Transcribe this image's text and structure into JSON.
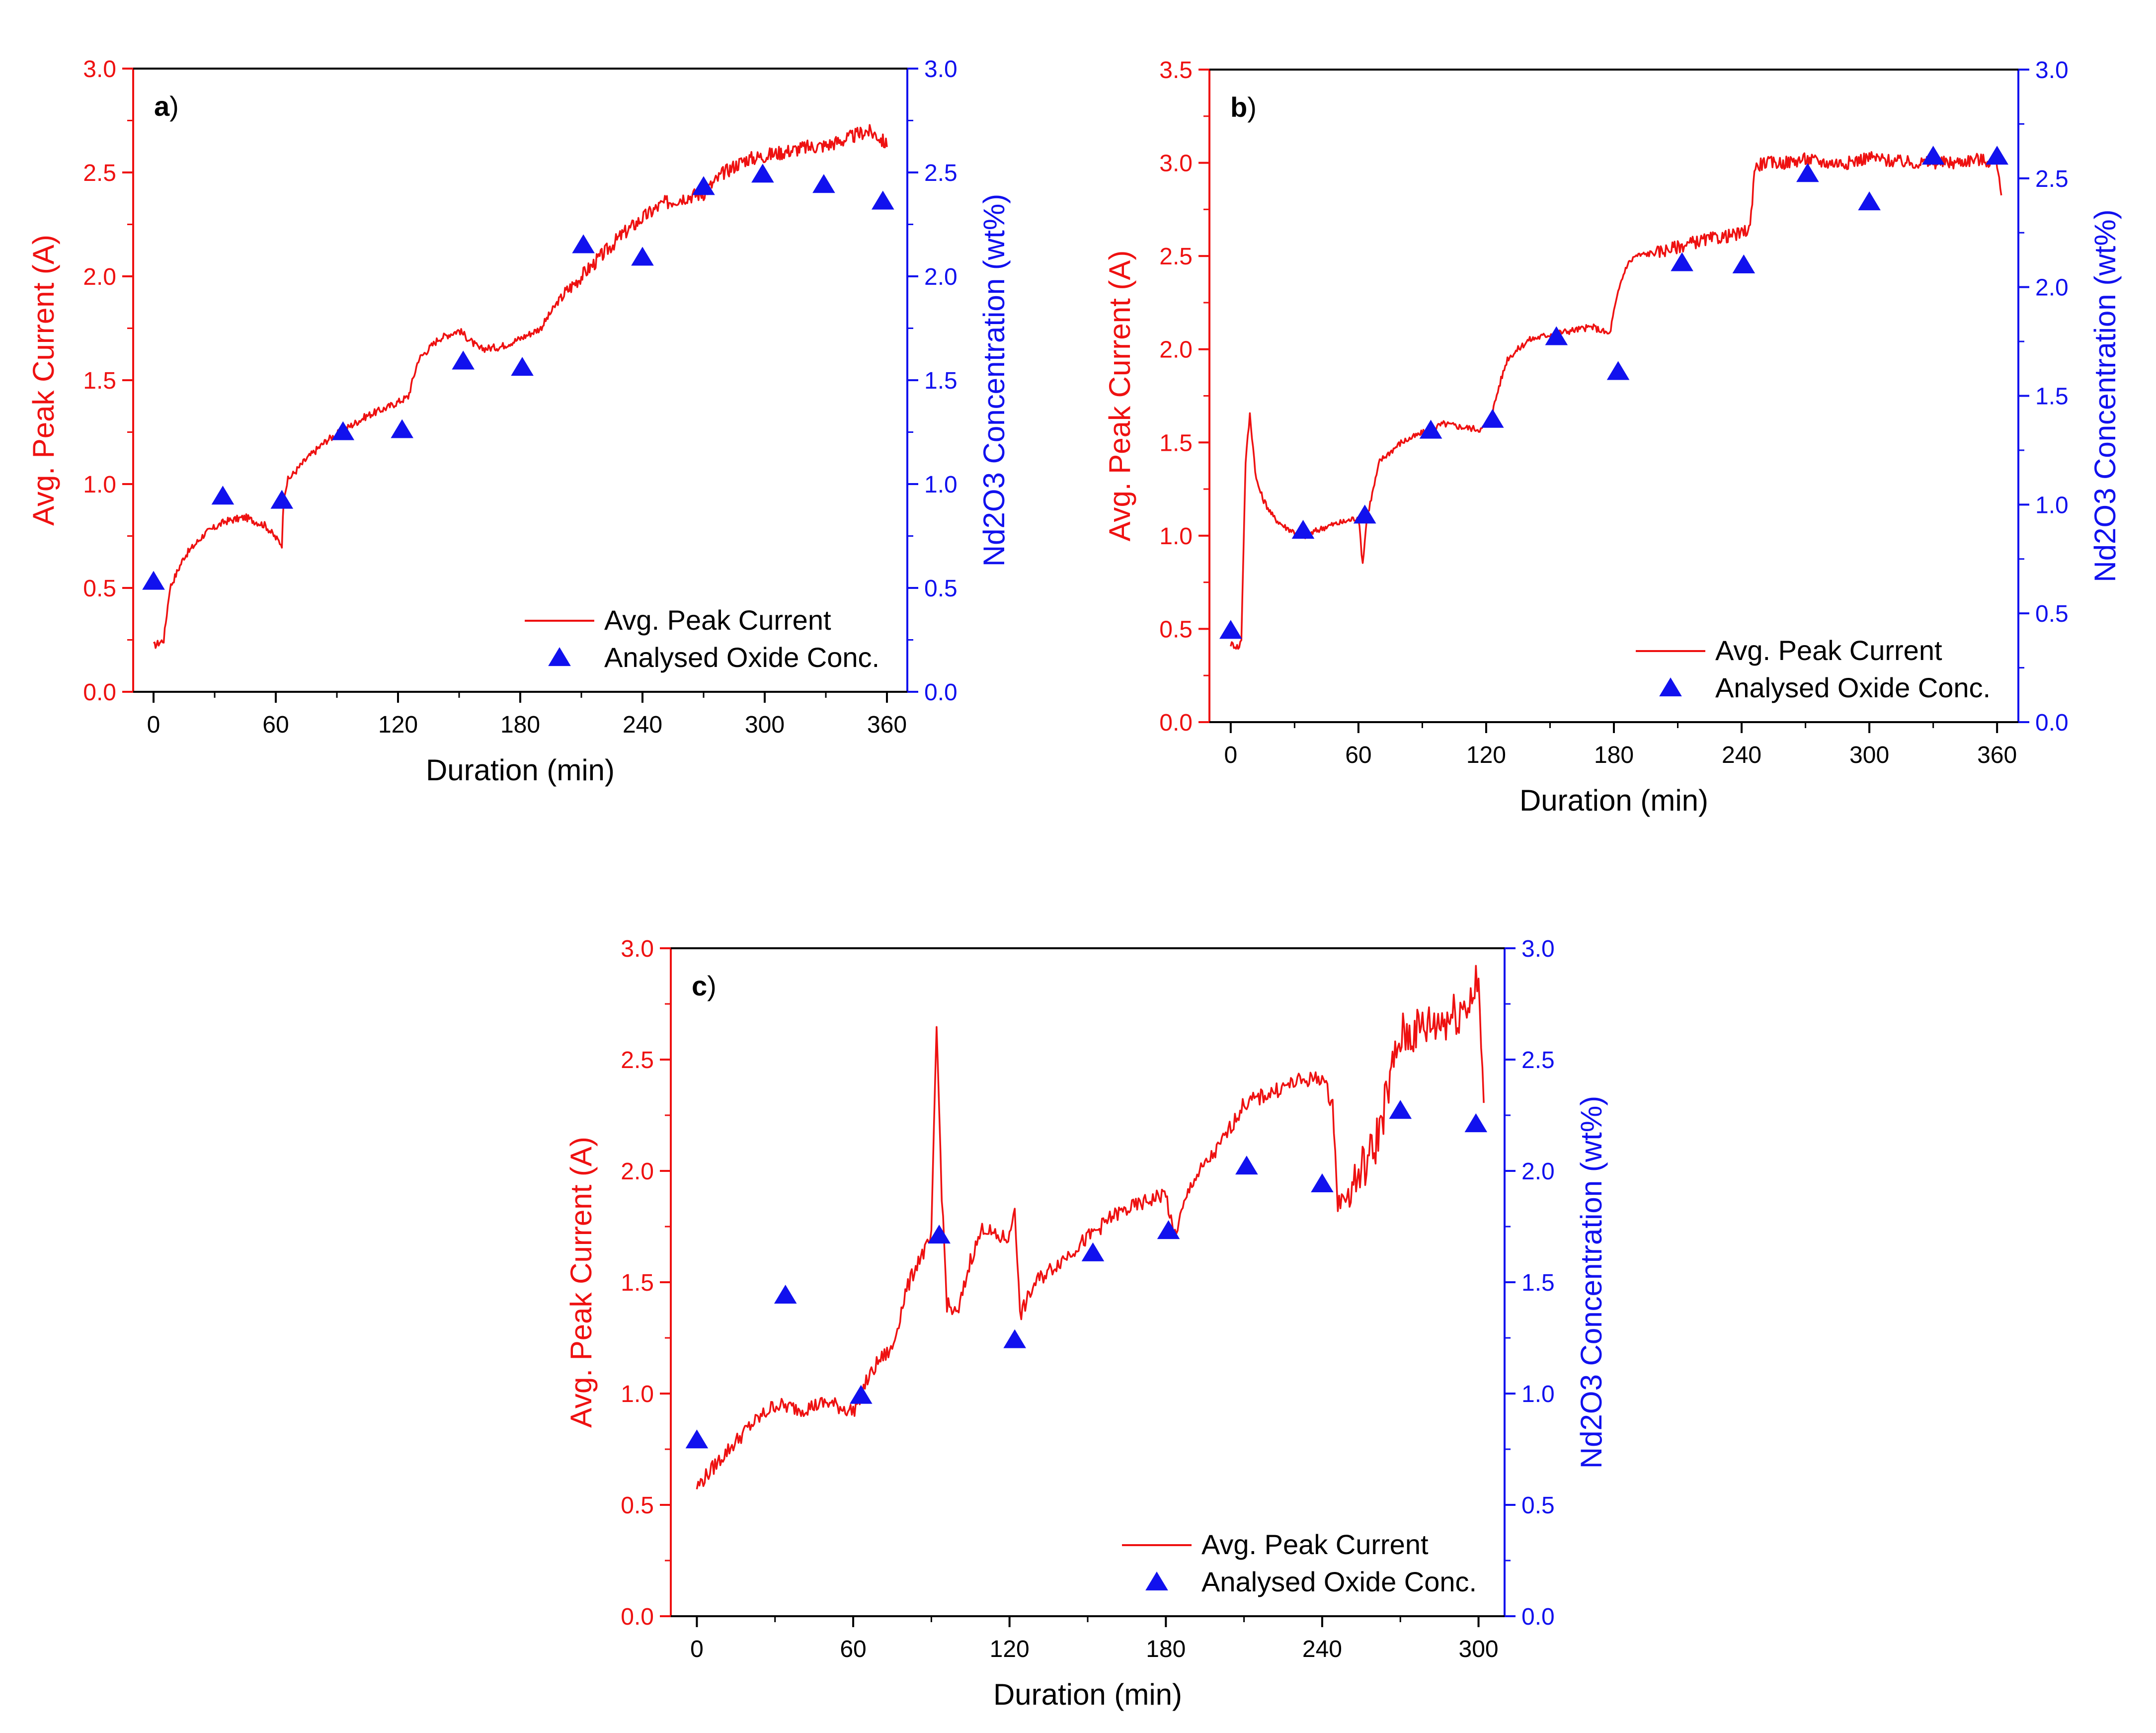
{
  "chart_data": [
    {
      "type": "line",
      "panel_label": "a",
      "xlabel": "Duration (min)",
      "ylabel": "Avg. Peak Current (A)",
      "y2label": "Nd2O3 Concentration (wt%)",
      "xlim": [
        -10,
        370
      ],
      "ylim": [
        0,
        3.0
      ],
      "y2lim": [
        0,
        3.0
      ],
      "xticks": [
        0,
        60,
        120,
        180,
        240,
        300,
        360
      ],
      "yticks": [
        0.0,
        0.5,
        1.0,
        1.5,
        2.0,
        2.5,
        3.0
      ],
      "y2ticks": [
        0.0,
        0.5,
        1.0,
        1.5,
        2.0,
        2.5,
        3.0
      ],
      "legend": [
        "Avg. Peak Current",
        "Analysed Oxide Conc."
      ],
      "legend_position": "bottom-right",
      "series": [
        {
          "name": "Avg. Peak Current",
          "axis": "left",
          "x": [
            0,
            5,
            8,
            15,
            25,
            35,
            45,
            55,
            60,
            63,
            64,
            66,
            75,
            85,
            95,
            105,
            115,
            125,
            130,
            140,
            150,
            160,
            170,
            180,
            190,
            200,
            210,
            220,
            230,
            240,
            250,
            260,
            270,
            275,
            280,
            290,
            300,
            310,
            320,
            330,
            340,
            350,
            355,
            360
          ],
          "values": [
            0.22,
            0.25,
            0.5,
            0.65,
            0.76,
            0.82,
            0.84,
            0.8,
            0.74,
            0.71,
            0.95,
            1.02,
            1.12,
            1.21,
            1.27,
            1.33,
            1.37,
            1.42,
            1.6,
            1.7,
            1.74,
            1.65,
            1.66,
            1.7,
            1.75,
            1.9,
            2.0,
            2.1,
            2.2,
            2.28,
            2.35,
            2.38,
            2.4,
            2.45,
            2.5,
            2.56,
            2.58,
            2.6,
            2.62,
            2.63,
            2.66,
            2.7,
            2.68,
            2.63
          ]
        },
        {
          "name": "Analysed Oxide Conc.",
          "axis": "right",
          "x": [
            0,
            34,
            63,
            93,
            122,
            152,
            181,
            211,
            240,
            270,
            299,
            329,
            358
          ],
          "values": [
            0.53,
            0.94,
            0.92,
            1.25,
            1.26,
            1.59,
            1.56,
            2.15,
            2.09,
            2.43,
            2.49,
            2.44,
            2.36
          ]
        }
      ]
    },
    {
      "type": "line",
      "panel_label": "b",
      "xlabel": "Duration (min)",
      "ylabel": "Avg. Peak Current (A)",
      "y2label": "Nd2O3 Concentration (wt%)",
      "xlim": [
        -10,
        370
      ],
      "ylim": [
        0,
        3.5
      ],
      "y2lim": [
        0,
        3.0
      ],
      "xticks": [
        0,
        60,
        120,
        180,
        240,
        300,
        360
      ],
      "yticks": [
        0.0,
        0.5,
        1.0,
        1.5,
        2.0,
        2.5,
        3.0,
        3.5
      ],
      "y2ticks": [
        0.0,
        0.5,
        1.0,
        1.5,
        2.0,
        2.5,
        3.0
      ],
      "legend": [
        "Avg. Peak Current",
        "Analysed Oxide Conc."
      ],
      "legend_position": "bottom-right",
      "series": [
        {
          "name": "Avg. Peak Current",
          "axis": "left",
          "x": [
            0,
            4,
            5,
            7,
            9,
            12,
            15,
            20,
            25,
            30,
            35,
            45,
            55,
            60,
            62,
            64,
            66,
            70,
            80,
            90,
            100,
            110,
            118,
            120,
            122,
            126,
            130,
            140,
            150,
            160,
            170,
            178,
            180,
            183,
            186,
            190,
            200,
            210,
            220,
            230,
            240,
            244,
            246,
            250,
            260,
            270,
            280,
            290,
            300,
            310,
            320,
            330,
            340,
            350,
            360,
            362
          ],
          "values": [
            0.42,
            0.4,
            0.45,
            1.4,
            1.65,
            1.3,
            1.2,
            1.1,
            1.05,
            1.02,
            1.0,
            1.05,
            1.08,
            1.1,
            0.85,
            1.1,
            1.2,
            1.4,
            1.5,
            1.55,
            1.6,
            1.58,
            1.57,
            1.6,
            1.62,
            1.8,
            1.95,
            2.05,
            2.08,
            2.1,
            2.12,
            2.08,
            2.2,
            2.35,
            2.45,
            2.5,
            2.52,
            2.55,
            2.58,
            2.6,
            2.62,
            2.65,
            2.97,
            3.0,
            3.0,
            3.02,
            3.0,
            3.0,
            3.03,
            3.01,
            3.0,
            3.0,
            3.0,
            3.02,
            3.0,
            2.85
          ]
        },
        {
          "name": "Analysed Oxide Conc.",
          "axis": "right",
          "x": [
            0,
            34,
            63,
            94,
            123,
            153,
            182,
            212,
            241,
            271,
            300,
            330,
            360
          ],
          "values": [
            0.42,
            0.88,
            0.95,
            1.34,
            1.39,
            1.77,
            1.61,
            2.11,
            2.1,
            2.52,
            2.39,
            2.6,
            2.6
          ]
        }
      ]
    },
    {
      "type": "line",
      "panel_label": "c",
      "xlabel": "Duration (min)",
      "ylabel": "Avg. Peak Current (A)",
      "y2label": "Nd2O3 Concentration (wt%)",
      "xlim": [
        -10,
        310
      ],
      "ylim": [
        0,
        3.0
      ],
      "y2lim": [
        0,
        3.0
      ],
      "xticks": [
        0,
        60,
        120,
        180,
        240,
        300
      ],
      "yticks": [
        0.0,
        0.5,
        1.0,
        1.5,
        2.0,
        2.5,
        3.0
      ],
      "y2ticks": [
        0.0,
        0.5,
        1.0,
        1.5,
        2.0,
        2.5,
        3.0
      ],
      "legend": [
        "Avg. Peak Current",
        "Analysed Oxide Conc."
      ],
      "legend_position": "bottom-right",
      "series": [
        {
          "name": "Avg. Peak Current",
          "axis": "left",
          "x": [
            0,
            10,
            20,
            30,
            40,
            50,
            60,
            65,
            70,
            75,
            80,
            85,
            88,
            90,
            92,
            94,
            96,
            100,
            105,
            110,
            115,
            120,
            122,
            124,
            130,
            140,
            150,
            160,
            170,
            180,
            183,
            190,
            200,
            210,
            220,
            230,
            240,
            244,
            246,
            250,
            260,
            262,
            270,
            280,
            290,
            295,
            298,
            300,
            302
          ],
          "values": [
            0.58,
            0.72,
            0.85,
            0.95,
            0.93,
            0.96,
            0.92,
            1.05,
            1.15,
            1.2,
            1.45,
            1.6,
            1.65,
            1.7,
            2.65,
            1.9,
            1.4,
            1.35,
            1.6,
            1.75,
            1.7,
            1.7,
            1.85,
            1.35,
            1.5,
            1.6,
            1.7,
            1.8,
            1.85,
            1.9,
            1.7,
            1.95,
            2.1,
            2.3,
            2.35,
            2.4,
            2.42,
            2.3,
            1.85,
            1.9,
            2.1,
            2.2,
            2.6,
            2.65,
            2.7,
            2.75,
            2.8,
            2.85,
            2.25
          ]
        },
        {
          "name": "Analysed Oxide Conc.",
          "axis": "right",
          "x": [
            0,
            34,
            63,
            93,
            122,
            152,
            181,
            211,
            240,
            270,
            299
          ],
          "values": [
            0.79,
            1.44,
            0.99,
            1.71,
            1.24,
            1.63,
            1.73,
            2.02,
            1.94,
            2.27,
            2.21
          ]
        }
      ]
    }
  ],
  "colors": {
    "current": "#ee1111",
    "oxide": "#1111ee",
    "axis_black": "#000000"
  }
}
